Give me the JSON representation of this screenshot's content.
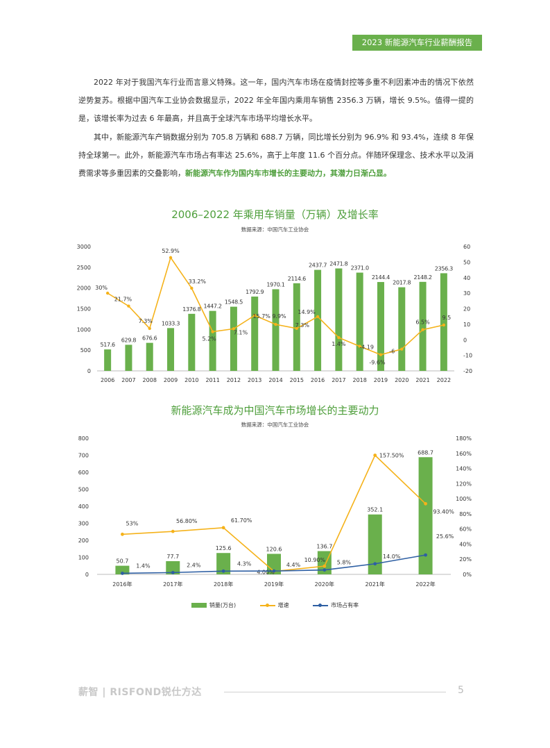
{
  "header": {
    "tag": "2023 新能源汽车行业薪酬报告"
  },
  "body": {
    "p1": "2022 年对于我国汽车行业而言意义特殊。这一年，国内汽车市场在疫情封控等多重不利因素冲击的情况下依然逆势复苏。根据中国汽车工业协会数据显示，2022 年全年国内乘用车销售 2356.3 万辆，增长 9.5%。值得一提的是，该增长率为过去 6 年最高，并且高于全球汽车市场平均增长水平。",
    "p2": "其中，新能源汽车产销数据分别为 705.8 万辆和 688.7 万辆，同比增长分别为 96.9% 和 93.4%，连续 8 年保持全球第一。此外，新能源汽车市场占有率达 25.6%，高于上年度 11.6 个百分点。伴随环保理念、技术水平以及消费需求等多重因素的交叠影响，",
    "p2_highlight": "新能源汽车作为国内车市增长的主要动力，其潜力日渐凸显。"
  },
  "chart_data": [
    {
      "type": "bar",
      "title": "2006–2022 年乘用车销量（万辆）及增长率",
      "source": "数据来源：中国汽车工业协会",
      "categories": [
        "2006",
        "2007",
        "2008",
        "2009",
        "2010",
        "2011",
        "2012",
        "2013",
        "2014",
        "2015",
        "2016",
        "2017",
        "2018",
        "2019",
        "2020",
        "2021",
        "2022"
      ],
      "series": [
        {
          "values": [
            517.6,
            629.8,
            676.6,
            1033.3,
            1376.8,
            1447.2,
            1548.5,
            1792.9,
            1970.1,
            2114.6,
            2437.7,
            2471.8,
            2371.0,
            2144.4,
            2017.8,
            2148.2,
            2356.3
          ],
          "labels": [
            "517.6",
            "629.8",
            "676.6",
            "1033.3",
            "1376.8",
            "1447.2",
            "1548.5",
            "1792.9",
            "1970.1",
            "2114.6",
            "2437.7",
            "2471.8",
            "2371.0",
            "2144.4",
            "2017.8",
            "2148.2",
            "2356.3"
          ]
        },
        {
          "type": "line",
          "axis": "right",
          "values": [
            30,
            21.7,
            7.3,
            52.9,
            33.2,
            5.2,
            7.1,
            15.7,
            9.9,
            7.3,
            14.9,
            1.4,
            -4.19,
            -9.6,
            -6,
            6.5,
            9.5
          ],
          "labels": [
            "30%",
            "21.7%",
            "7.3%",
            "52.9%",
            "33.2%",
            "5.2%",
            "7.1%",
            "15.7%",
            "9.9%",
            "7.3%",
            "14.9%",
            "1.4%",
            "-4.19",
            "-9.6%",
            "-6",
            "6.5%",
            "9.5"
          ]
        }
      ],
      "ylim": [
        0,
        3000
      ],
      "yticks": [
        "0",
        "500",
        "1000",
        "1500",
        "2000",
        "2500",
        "3000"
      ],
      "y2lim": [
        -20,
        60
      ],
      "y2ticks": [
        "-20",
        "-10",
        "0",
        "10",
        "20",
        "30",
        "40",
        "50",
        "60"
      ],
      "colors": {
        "bar": "#6ab04c",
        "line": "#f5b21a"
      }
    },
    {
      "type": "bar",
      "title": "新能源汽车成为中国汽车市场增长的主要动力",
      "source": "数据来源：中国汽车工业协会",
      "categories": [
        "2016年",
        "2017年",
        "2018年",
        "2019年",
        "2020年",
        "2021年",
        "2022年"
      ],
      "series": [
        {
          "name": "销量(万台)",
          "values": [
            50.7,
            77.7,
            125.6,
            120.6,
            136.7,
            352.1,
            688.7
          ],
          "labels": [
            "50.7",
            "77.7",
            "125.6",
            "120.6",
            "136.7",
            "352.1",
            "688.7"
          ]
        },
        {
          "name": "增速",
          "type": "line",
          "axis": "right",
          "values": [
            53,
            56.8,
            61.7,
            4.0,
            10.9,
            157.5,
            93.4
          ],
          "labels": [
            "53%",
            "56.80%",
            "61.70%",
            "4.00%",
            "10.90%",
            "157.50%",
            "93.40%"
          ]
        },
        {
          "name": "市场占有率",
          "type": "line",
          "axis": "right",
          "values": [
            1.4,
            2.4,
            4.3,
            4.4,
            5.8,
            14.0,
            25.6
          ],
          "labels": [
            "1.4%",
            "2.4%",
            "4.3%",
            "4.4%",
            "5.8%",
            "14.0%",
            "25.6%"
          ]
        }
      ],
      "ylim": [
        0,
        800
      ],
      "yticks": [
        "0",
        "100",
        "200",
        "300",
        "400",
        "500",
        "600",
        "700",
        "800"
      ],
      "y2lim": [
        0,
        180
      ],
      "y2ticks": [
        "0%",
        "20%",
        "40%",
        "60%",
        "80%",
        "100%",
        "120%",
        "140%",
        "160%",
        "180%"
      ],
      "colors": {
        "bar": "#6ab04c",
        "growth": "#f5b21a",
        "share": "#2e5fa3"
      }
    }
  ],
  "footer": {
    "brand": "薪智 | RISFOND锐仕方达",
    "page": "5"
  }
}
